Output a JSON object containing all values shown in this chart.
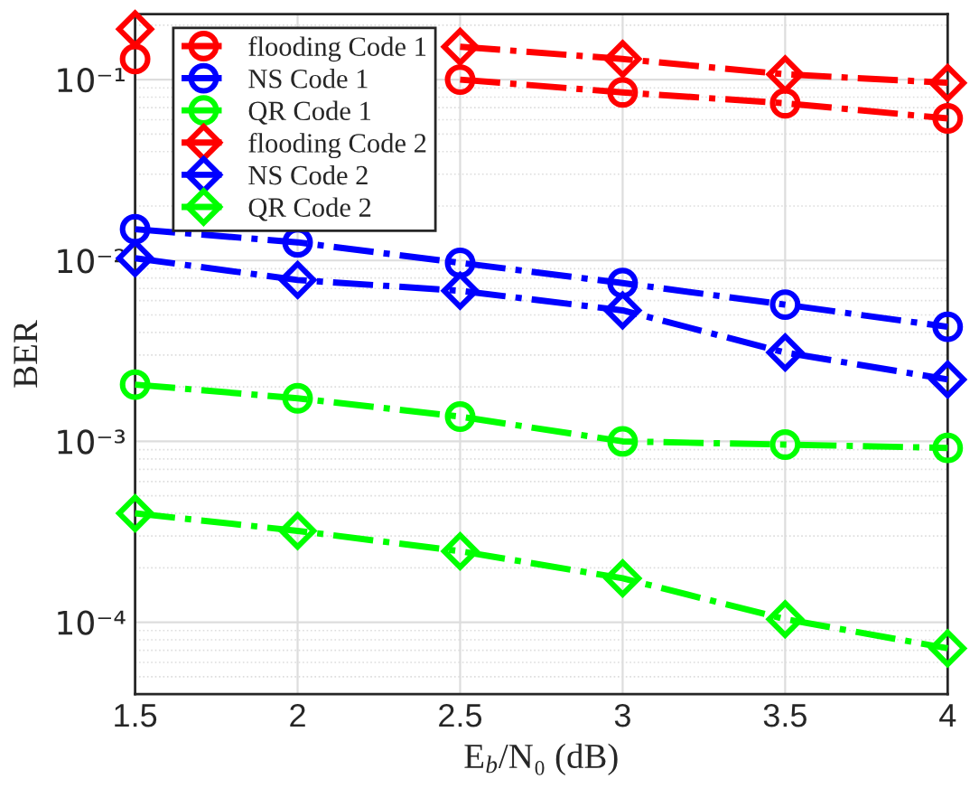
{
  "chart_data": {
    "type": "line",
    "xlabel": "E$_{b}$/N₀ (dB)",
    "ylabel": "BER",
    "x": [
      1.5,
      2,
      2.5,
      3,
      3.5,
      4
    ],
    "series": [
      {
        "name": "flooding Code 1",
        "color": "#ff0000",
        "marker": "circle",
        "values": [
          0.13,
          null,
          0.1,
          0.085,
          0.074,
          0.061
        ]
      },
      {
        "name": "NS Code 1",
        "color": "#0000ff",
        "marker": "circle",
        "values": [
          0.0149,
          0.0126,
          0.0097,
          0.0075,
          0.0057,
          0.0043
        ]
      },
      {
        "name": "QR Code 1",
        "color": "#00ff00",
        "marker": "circle",
        "values": [
          0.00206,
          0.00173,
          0.00137,
          0.001,
          0.00096,
          0.00092
        ]
      },
      {
        "name": "flooding Code 2",
        "color": "#ff0000",
        "marker": "diamond",
        "values": [
          0.19,
          null,
          0.152,
          0.13,
          0.107,
          0.096
        ]
      },
      {
        "name": "NS Code 2",
        "color": "#0000ff",
        "marker": "diamond",
        "values": [
          0.0103,
          0.0078,
          0.0068,
          0.0053,
          0.0031,
          0.0022
        ]
      },
      {
        "name": "QR Code 2",
        "color": "#00ff00",
        "marker": "diamond",
        "values": [
          0.0004,
          0.00032,
          0.000247,
          0.000175,
          0.000104,
          7.18e-05
        ]
      }
    ],
    "line_style": "dashed",
    "log": "y",
    "grid": true,
    "legend": "top left",
    "xlim": [
      1.5,
      4
    ],
    "xticks": [
      1.5,
      2,
      2.5,
      3,
      3.5,
      4
    ],
    "ylim": [
      4e-05,
      0.23
    ],
    "yticks": [
      {
        "value": 0.0001,
        "label": "10⁻⁴"
      },
      {
        "value": 0.001,
        "label": "10⁻³"
      },
      {
        "value": 0.01,
        "label": "10⁻²"
      },
      {
        "value": 0.1,
        "label": "10⁻¹"
      }
    ]
  }
}
